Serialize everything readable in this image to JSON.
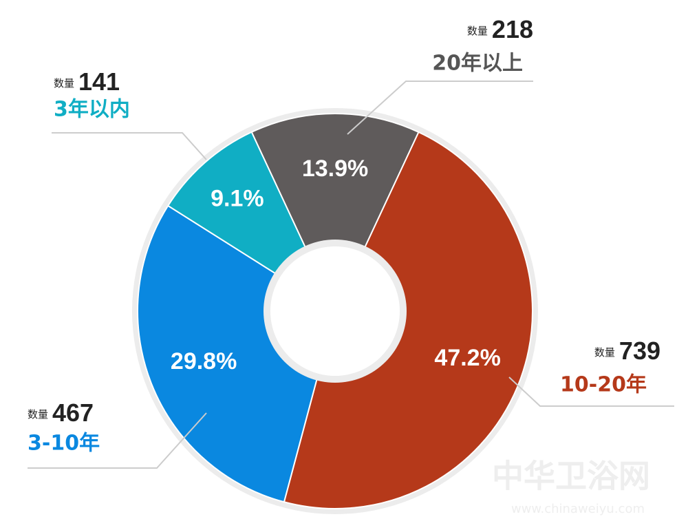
{
  "chart_data": {
    "type": "donut",
    "categories": [
      "20年以上",
      "10-20年",
      "3-10年",
      "3年以内"
    ],
    "count_label": "数量",
    "values": [
      218,
      739,
      467,
      141
    ],
    "percents": [
      13.9,
      47.2,
      29.8,
      9.1
    ],
    "percent_labels": [
      "13.9%",
      "47.2%",
      "29.8%",
      "9.1%"
    ],
    "colors": [
      "#5f5b5b",
      "#b5391a",
      "#0a88e0",
      "#10aec4"
    ],
    "label_colors": [
      "#555555",
      "#b5391a",
      "#0a88e0",
      "#10aec4"
    ],
    "watermark": [
      "中华卫浴网",
      "www.chinaweiyu.com"
    ]
  }
}
